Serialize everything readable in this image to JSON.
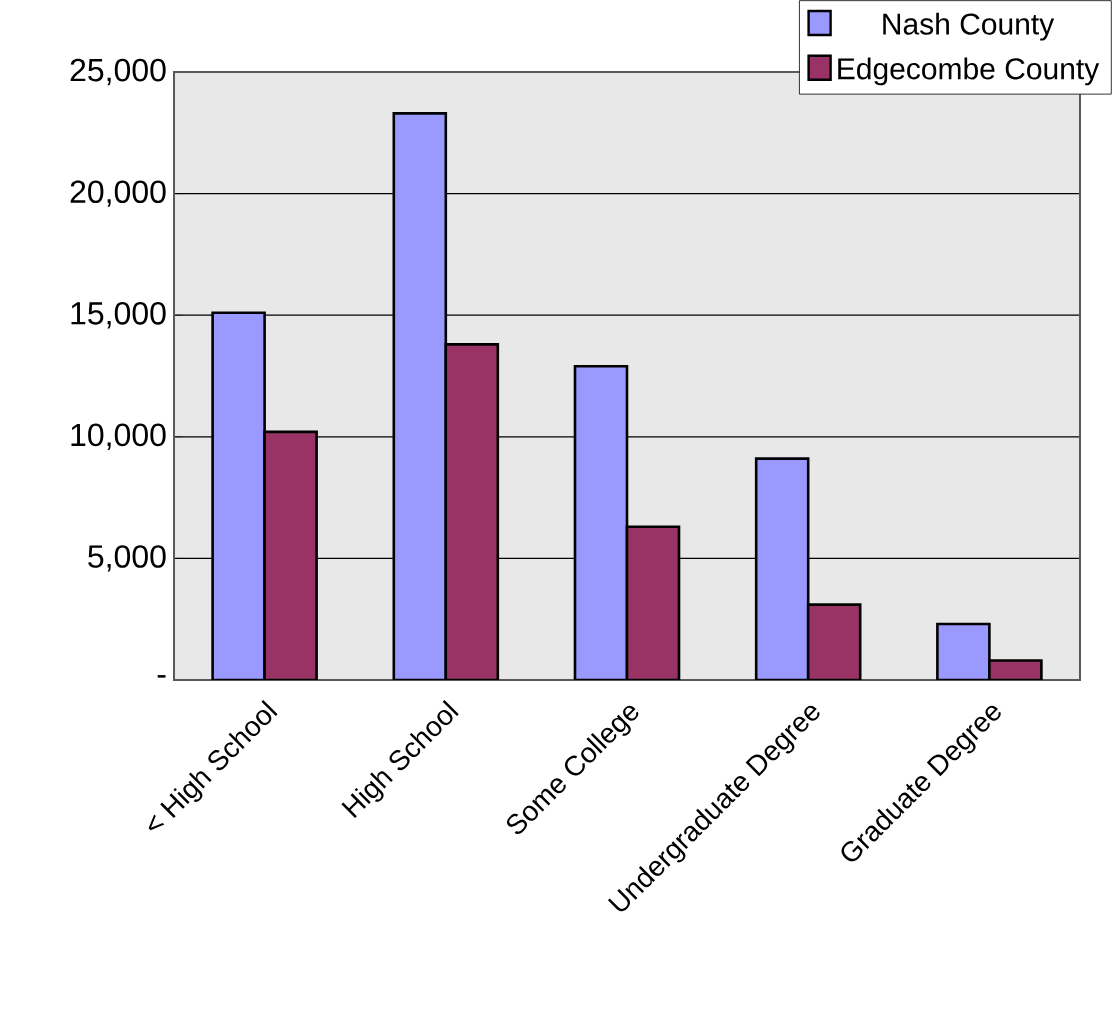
{
  "chart_data": {
    "type": "bar",
    "categories": [
      "< High School",
      "High School",
      "Some College",
      "Undergraduate Degree",
      "Graduate Degree"
    ],
    "series": [
      {
        "name": "Nash County",
        "color": "#9999ff",
        "values": [
          15100,
          23300,
          12900,
          9100,
          2300
        ]
      },
      {
        "name": "Edgecombe County",
        "color": "#993366",
        "values": [
          10200,
          13800,
          6300,
          3100,
          800
        ]
      }
    ],
    "ylim": [
      0,
      25000
    ],
    "yticks": [
      {
        "value": 0,
        "label": "-"
      },
      {
        "value": 5000,
        "label": "5,000"
      },
      {
        "value": 10000,
        "label": "10,000"
      },
      {
        "value": 15000,
        "label": "15,000"
      },
      {
        "value": 20000,
        "label": "20,000"
      },
      {
        "value": 25000,
        "label": "25,000"
      }
    ],
    "grid": "y",
    "legend": "top right"
  }
}
